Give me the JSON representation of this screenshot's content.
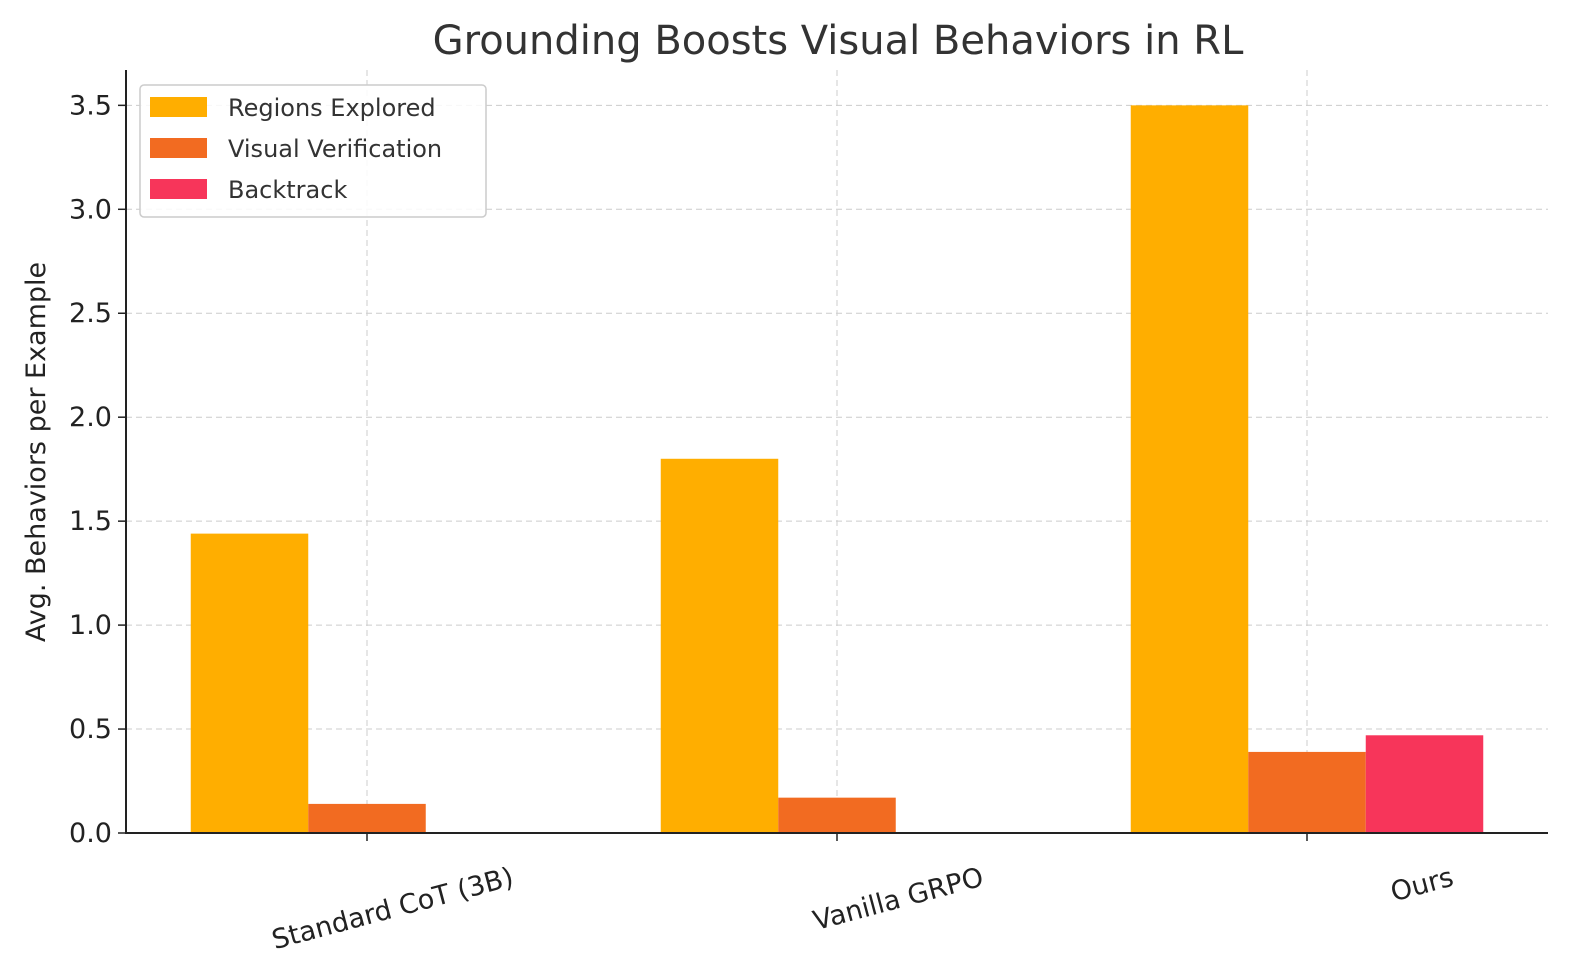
{
  "chart_data": {
    "type": "bar",
    "title": "Grounding Boosts Visual Behaviors in RL",
    "xlabel": "",
    "ylabel": "Avg. Behaviors per Example",
    "categories": [
      "Standard CoT (3B)",
      "Vanilla GRPO",
      "Ours"
    ],
    "series": [
      {
        "name": "Regions Explored",
        "color": "#FFAE00",
        "values": [
          1.44,
          1.8,
          3.5
        ]
      },
      {
        "name": "Visual Verification",
        "color": "#F26B21",
        "values": [
          0.14,
          0.17,
          0.39
        ]
      },
      {
        "name": "Backtrack",
        "color": "#F7355A",
        "values": [
          0.0,
          0.0,
          0.47
        ]
      }
    ],
    "ylim": [
      0,
      3.67
    ],
    "yticks": [
      "0.0",
      "0.5",
      "1.0",
      "1.5",
      "2.0",
      "2.5",
      "3.0",
      "3.5"
    ],
    "grid": true,
    "legend_position": "top-left"
  }
}
